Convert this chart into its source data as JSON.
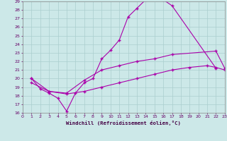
{
  "xlabel": "Windchill (Refroidissement éolien,°C)",
  "background_color": "#cce8e8",
  "grid_color": "#aacece",
  "line_color": "#aa00aa",
  "xlim": [
    0,
    23
  ],
  "ylim": [
    16,
    29
  ],
  "xticks": [
    0,
    1,
    2,
    3,
    4,
    5,
    6,
    7,
    8,
    9,
    10,
    11,
    12,
    13,
    14,
    15,
    16,
    17,
    18,
    19,
    20,
    21,
    22,
    23
  ],
  "yticks": [
    16,
    17,
    18,
    19,
    20,
    21,
    22,
    23,
    24,
    25,
    26,
    27,
    28,
    29
  ],
  "line1_x": [
    1,
    2,
    3,
    4,
    5,
    6,
    7,
    8,
    9,
    10,
    11,
    12,
    13,
    14,
    15,
    16,
    17,
    22
  ],
  "line1_y": [
    20.0,
    18.8,
    18.3,
    17.7,
    16.2,
    18.3,
    19.5,
    20.0,
    22.3,
    23.3,
    24.5,
    27.2,
    28.2,
    29.2,
    29.5,
    29.2,
    28.5,
    21.2
  ],
  "line2_x": [
    1,
    3,
    5,
    7,
    9,
    11,
    13,
    15,
    17,
    22,
    23
  ],
  "line2_y": [
    20.0,
    18.5,
    18.3,
    19.8,
    21.0,
    21.5,
    22.0,
    22.3,
    22.8,
    23.2,
    21.2
  ],
  "line3_x": [
    1,
    3,
    5,
    7,
    9,
    11,
    13,
    15,
    17,
    19,
    21,
    22,
    23
  ],
  "line3_y": [
    19.5,
    18.5,
    18.2,
    18.5,
    19.0,
    19.5,
    20.0,
    20.5,
    21.0,
    21.3,
    21.5,
    21.3,
    21.0
  ]
}
